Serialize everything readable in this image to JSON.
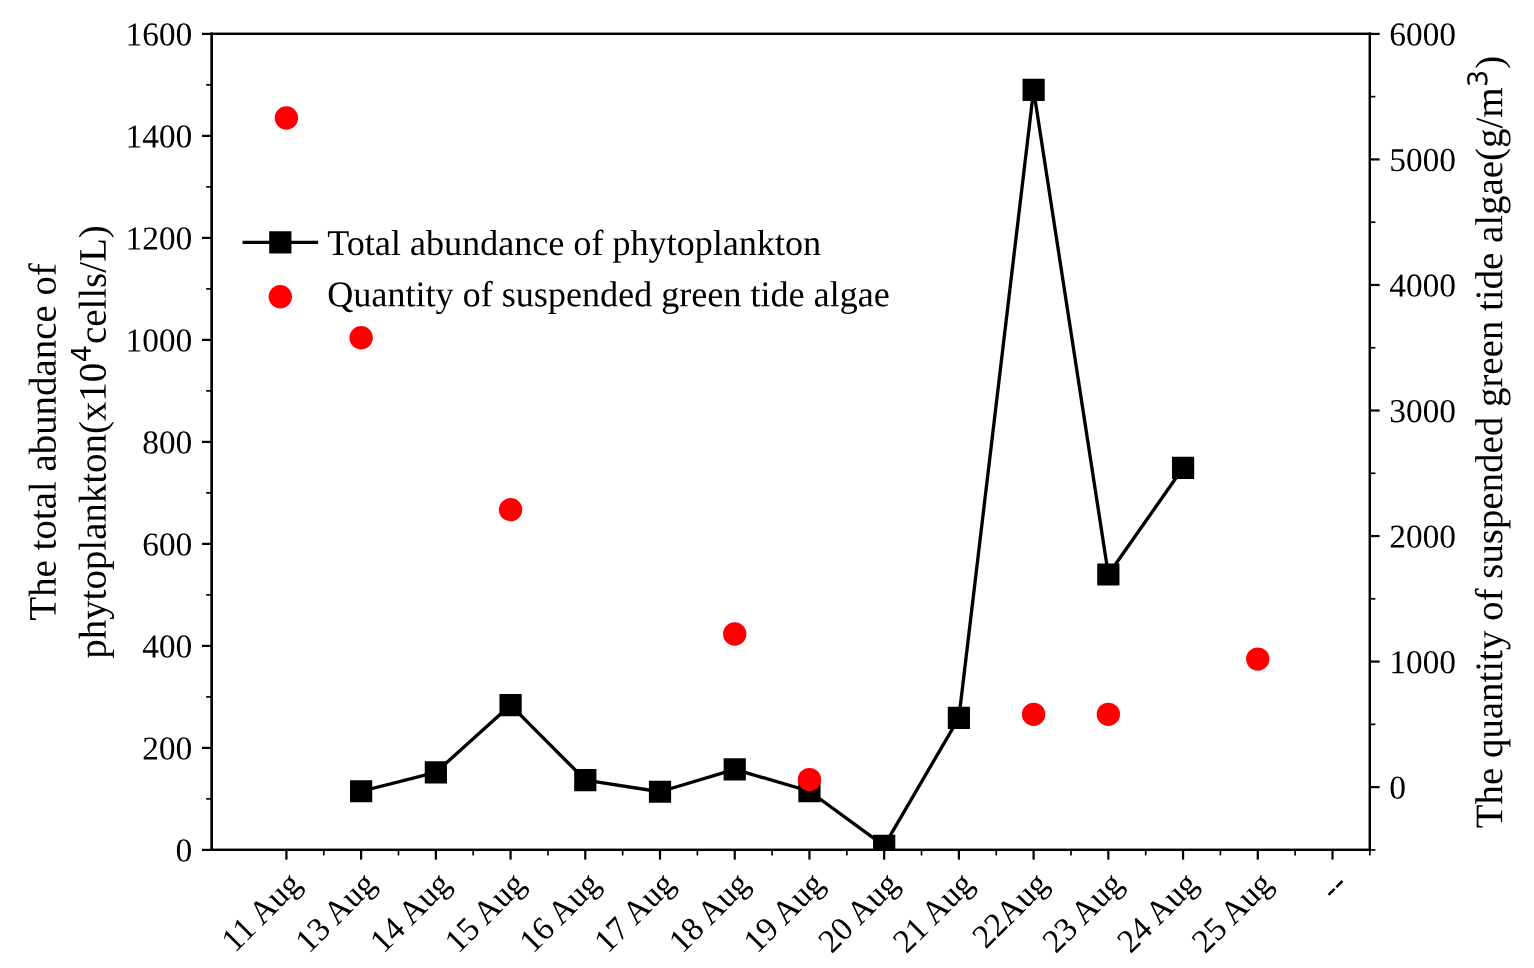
{
  "chart_data": {
    "type": "line",
    "categories": [
      "11 Aug",
      "13 Aug",
      "14 Aug",
      "15 Aug",
      "16 Aug",
      "17 Aug",
      "18 Aug",
      "19 Aug",
      "20 Aug",
      "21 Aug",
      "22Aug",
      "23 Aug",
      "24 Aug",
      "25 Aug",
      "--"
    ],
    "ylabel": "The total abundance of\nphytoplankton(x10$^{4}$cells/L)",
    "y2label": "The quantity of suspended green tide algae(g/m$^{3}$)",
    "ylim": [
      0,
      1600
    ],
    "yticks": [
      0,
      200,
      400,
      600,
      800,
      1000,
      1200,
      1400,
      1600
    ],
    "y2lim": [
      -500,
      6000
    ],
    "y2ticks": [
      0,
      1000,
      2000,
      3000,
      4000,
      5000,
      6000
    ],
    "legend": "top left",
    "grid": false,
    "series": [
      {
        "name": "Total abundance of phytoplankton",
        "color": "#000000",
        "marker": "square",
        "line_style": "solid",
        "values": [
          null,
          115,
          152,
          284,
          137,
          114,
          158,
          115,
          8,
          259,
          1490,
          540,
          749,
          null,
          null
        ]
      },
      {
        "name": "Quantity of suspended green tide algae",
        "type": "scatter",
        "axis": "y2",
        "color": "#ff0000",
        "marker": "circle",
        "values": [
          5330,
          3580,
          null,
          2210,
          null,
          null,
          1220,
          60,
          null,
          null,
          580,
          580,
          null,
          1020,
          null
        ]
      }
    ]
  }
}
